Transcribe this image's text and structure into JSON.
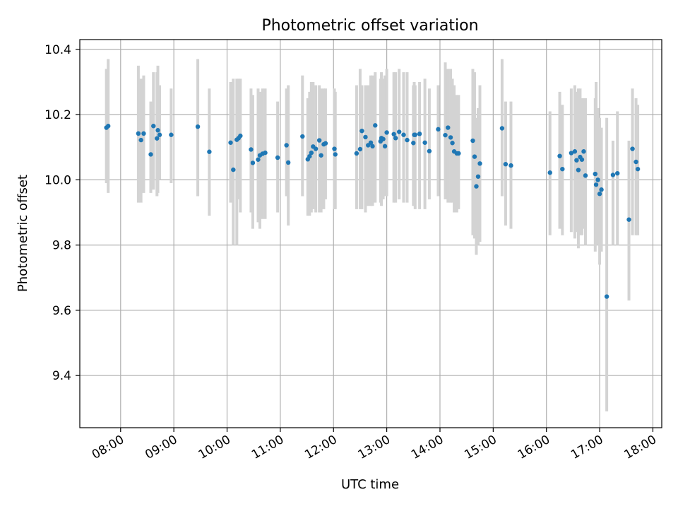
{
  "colors": {
    "point": "#1f77b4",
    "errorbar": "#d3d3d3",
    "grid": "#b0b0b0"
  },
  "chart_data": {
    "type": "scatter",
    "title": "Photometric offset variation",
    "xlabel": "UTC time",
    "ylabel": "Photometric offset",
    "xlim": [
      "07:14",
      "18:10"
    ],
    "ylim": [
      9.24,
      10.43
    ],
    "grid": true,
    "x_ticks": [
      "08:00",
      "09:00",
      "10:00",
      "11:00",
      "12:00",
      "13:00",
      "14:00",
      "15:00",
      "16:00",
      "17:00",
      "18:00"
    ],
    "y_ticks": [
      "9.4",
      "9.6",
      "9.8",
      "10.0",
      "10.2",
      "10.4"
    ],
    "y_tick_values": [
      9.4,
      9.6,
      9.8,
      10.0,
      10.2,
      10.4
    ],
    "series": [
      {
        "x": [
          "07:44",
          "07:46",
          "08:20",
          "08:23",
          "08:26",
          "08:34",
          "08:37",
          "08:41",
          "08:42",
          "08:44",
          "08:57",
          "09:27",
          "09:40",
          "10:04",
          "10:07",
          "10:11",
          "10:13",
          "10:15",
          "10:27",
          "10:29",
          "10:35",
          "10:37",
          "10:40",
          "10:43",
          "10:57",
          "11:07",
          "11:09",
          "11:25",
          "11:31",
          "11:33",
          "11:35",
          "11:37",
          "11:40",
          "11:44",
          "11:46",
          "11:49",
          "11:51",
          "12:01",
          "12:02",
          "12:26",
          "12:30",
          "12:32",
          "12:36",
          "12:39",
          "12:42",
          "12:44",
          "12:47",
          "12:53",
          "12:54",
          "12:56",
          "12:58",
          "13:00",
          "13:08",
          "13:10",
          "13:14",
          "13:19",
          "13:23",
          "13:30",
          "13:31",
          "13:32",
          "13:37",
          "13:43",
          "13:48",
          "13:58",
          "14:06",
          "14:09",
          "14:12",
          "14:14",
          "14:16",
          "14:19",
          "14:21",
          "14:37",
          "14:39",
          "14:41",
          "14:43",
          "14:45",
          "15:10",
          "15:14",
          "15:20",
          "16:04",
          "16:15",
          "16:18",
          "16:28",
          "16:32",
          "16:34",
          "16:36",
          "16:38",
          "16:40",
          "16:42",
          "16:44",
          "16:55",
          "16:56",
          "16:58",
          "17:00",
          "17:02",
          "17:08",
          "17:15",
          "17:20",
          "17:33",
          "17:37",
          "17:41",
          "17:43"
        ],
        "y": [
          10.16,
          10.165,
          10.142,
          10.122,
          10.142,
          10.078,
          10.165,
          10.127,
          10.152,
          10.138,
          10.138,
          10.163,
          10.086,
          10.114,
          10.031,
          10.123,
          10.128,
          10.135,
          10.093,
          10.052,
          10.062,
          10.075,
          10.08,
          10.083,
          10.068,
          10.106,
          10.053,
          10.133,
          10.063,
          10.072,
          10.083,
          10.102,
          10.095,
          10.121,
          10.075,
          10.109,
          10.112,
          10.095,
          10.078,
          10.081,
          10.094,
          10.15,
          10.131,
          10.106,
          10.114,
          10.103,
          10.167,
          10.118,
          10.128,
          10.125,
          10.103,
          10.145,
          10.14,
          10.128,
          10.147,
          10.138,
          10.122,
          10.113,
          10.138,
          10.138,
          10.141,
          10.114,
          10.088,
          10.155,
          10.137,
          10.16,
          10.13,
          10.113,
          10.087,
          10.081,
          10.081,
          10.12,
          10.071,
          9.98,
          10.01,
          10.05,
          10.158,
          10.048,
          10.044,
          10.022,
          10.073,
          10.033,
          10.082,
          10.087,
          10.06,
          10.03,
          10.07,
          10.062,
          10.087,
          10.013,
          10.018,
          9.985,
          10.0,
          9.957,
          9.97,
          9.642,
          10.015,
          10.02,
          9.878,
          10.095,
          10.055,
          10.033
        ],
        "err_low": [
          9.99,
          9.96,
          9.93,
          9.93,
          9.96,
          9.96,
          9.97,
          9.95,
          9.96,
          10.0,
          9.99,
          9.95,
          9.89,
          9.93,
          9.8,
          9.8,
          9.94,
          9.9,
          9.9,
          9.85,
          9.87,
          9.85,
          9.88,
          9.88,
          9.9,
          9.95,
          9.86,
          9.95,
          9.89,
          9.89,
          9.9,
          9.91,
          9.9,
          9.9,
          9.9,
          9.91,
          9.94,
          9.91,
          9.91,
          9.91,
          9.91,
          9.91,
          9.9,
          9.92,
          9.92,
          9.92,
          9.93,
          9.93,
          9.92,
          9.94,
          9.95,
          9.95,
          9.93,
          9.93,
          9.94,
          9.93,
          9.93,
          9.92,
          9.92,
          9.91,
          9.91,
          9.91,
          9.94,
          9.95,
          9.94,
          9.93,
          9.93,
          9.93,
          9.9,
          9.9,
          9.91,
          9.83,
          9.82,
          9.77,
          9.8,
          9.81,
          9.95,
          9.86,
          9.85,
          9.83,
          9.85,
          9.83,
          9.84,
          9.82,
          9.84,
          9.79,
          9.83,
          9.83,
          9.85,
          9.8,
          9.78,
          9.8,
          9.8,
          9.74,
          9.78,
          9.29,
          9.8,
          9.8,
          9.63,
          9.83,
          9.83,
          9.83
        ],
        "err_high": [
          10.34,
          10.37,
          10.35,
          10.31,
          10.32,
          10.24,
          10.33,
          10.33,
          10.35,
          10.29,
          10.28,
          10.37,
          10.28,
          10.3,
          10.31,
          10.31,
          10.31,
          10.31,
          10.28,
          10.26,
          10.28,
          10.27,
          10.28,
          10.28,
          10.24,
          10.28,
          10.29,
          10.32,
          10.25,
          10.27,
          10.3,
          10.3,
          10.29,
          10.29,
          10.28,
          10.28,
          10.28,
          10.28,
          10.27,
          10.29,
          10.34,
          10.29,
          10.29,
          10.29,
          10.32,
          10.32,
          10.33,
          10.31,
          10.33,
          10.31,
          10.32,
          10.34,
          10.33,
          10.33,
          10.34,
          10.33,
          10.33,
          10.29,
          10.3,
          10.29,
          10.3,
          10.31,
          10.28,
          10.29,
          10.36,
          10.34,
          10.34,
          10.31,
          10.29,
          10.26,
          10.26,
          10.34,
          10.33,
          10.19,
          10.22,
          10.29,
          10.37,
          10.24,
          10.24,
          10.21,
          10.27,
          10.23,
          10.28,
          10.29,
          10.27,
          10.28,
          10.28,
          10.25,
          10.25,
          10.25,
          10.25,
          10.3,
          10.22,
          10.19,
          10.16,
          10.19,
          10.12,
          10.21,
          10.12,
          10.28,
          10.25,
          10.23
        ]
      }
    ]
  }
}
